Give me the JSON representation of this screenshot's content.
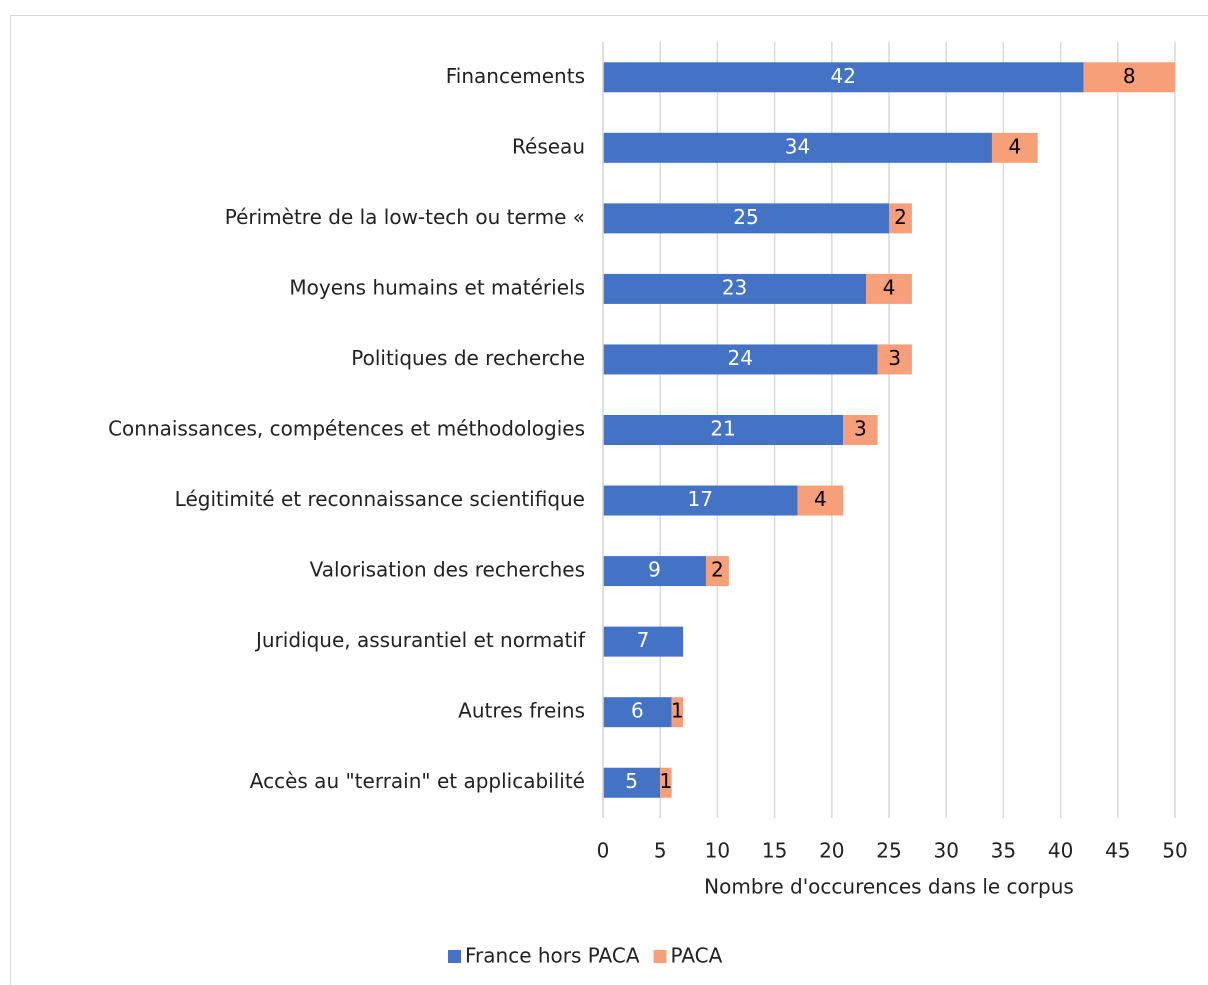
{
  "chart_data": {
    "type": "stacked_barh",
    "categories": [
      "Financements",
      "Réseau",
      "Périmètre de la low-tech ou terme «",
      "Moyens humains et matériels",
      "Politiques de recherche",
      "Connaissances, compétences et méthodologies",
      "Légitimité et reconnaissance scientifique",
      "Valorisation des recherches",
      "Juridique, assurantiel et normatif",
      "Autres freins",
      "Accès au \"terrain\" et applicabilité"
    ],
    "series": [
      {
        "name": "France hors PACA",
        "color": "#4472c4",
        "values": [
          42,
          34,
          25,
          23,
          24,
          21,
          17,
          9,
          7,
          6,
          5
        ]
      },
      {
        "name": "PACA",
        "color": "#f79f78",
        "values": [
          8,
          4,
          2,
          4,
          3,
          3,
          4,
          2,
          null,
          1,
          1
        ]
      }
    ],
    "xlabel": "Nombre d'occurences dans le corpus",
    "xlim": [
      0,
      50
    ],
    "xticks": [
      0,
      5,
      10,
      15,
      20,
      25,
      30,
      35,
      40,
      45,
      50
    ],
    "grid": true,
    "legend": "bottom"
  }
}
